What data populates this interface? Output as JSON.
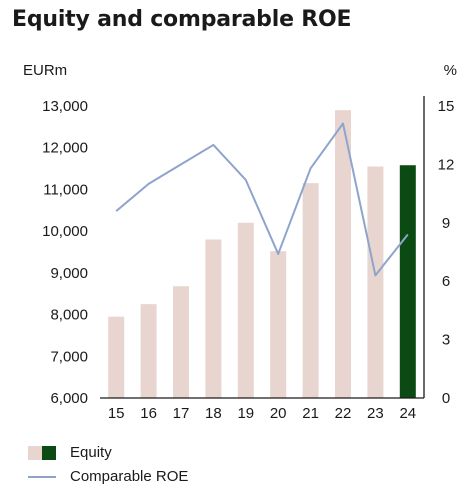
{
  "title": "Equity and comparable ROE",
  "chart_data": {
    "type": "bar+line",
    "title": "Equity and comparable ROE",
    "categories": [
      "15",
      "16",
      "17",
      "18",
      "19",
      "20",
      "21",
      "22",
      "23",
      "24"
    ],
    "left_axis": {
      "label": "EURm",
      "ylim": [
        6000,
        13000
      ],
      "ticks": [
        "6,000",
        "7,000",
        "8,000",
        "9,000",
        "10,000",
        "11,000",
        "12,000",
        "13,000"
      ]
    },
    "right_axis": {
      "label": "%",
      "ylim": [
        0,
        15
      ],
      "ticks": [
        "0",
        "3",
        "6",
        "9",
        "12",
        "15"
      ]
    },
    "series": [
      {
        "name": "Equity",
        "axis": "left",
        "type": "bar",
        "values": [
          7950,
          8250,
          8680,
          9800,
          10200,
          9520,
          11150,
          12900,
          11550,
          11580
        ]
      },
      {
        "name": "Comparable ROE",
        "axis": "right",
        "type": "line",
        "values": [
          9.6,
          11.0,
          12.0,
          13.0,
          11.2,
          7.4,
          11.8,
          14.1,
          6.3,
          8.4
        ]
      }
    ],
    "grid": false,
    "legend_position": "bottom-left"
  },
  "colors": {
    "bar": "#e8d5cf",
    "bar_highlight": "#0b4a12",
    "line": "#8ea4cc",
    "axis": "#1a1a1a"
  },
  "legend": {
    "equity_label": "Equity",
    "roe_label": "Comparable ROE"
  }
}
